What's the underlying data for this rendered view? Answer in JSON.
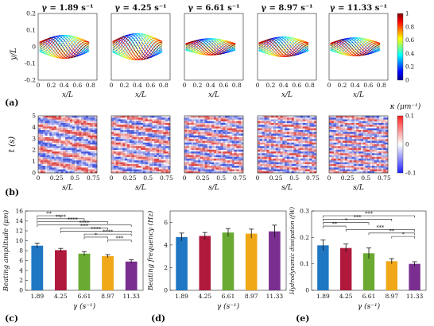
{
  "gammas": [
    "γ = 1.89 s⁻¹",
    "γ = 4.25 s⁻¹",
    "γ = 6.61 s⁻¹",
    "γ = 8.97 s⁻¹",
    "γ = 11.33 s⁻¹"
  ],
  "panel_a": {
    "letter": "(a)",
    "ylabel": "y/L",
    "xlabel": "x/L",
    "xticks": [
      "0",
      "0.2",
      "0.4",
      "0.6",
      "0.8"
    ],
    "yticks": [
      "0.2",
      "0.1",
      "0",
      "-0.1",
      "-0.2"
    ],
    "colorbar_ticks": [
      "1",
      "0.8",
      "0.6",
      "0.4",
      "0.2",
      "0"
    ]
  },
  "panel_b": {
    "letter": "(b)",
    "ylabel": "t (s)",
    "xlabel": "s/L",
    "xticks": [
      "0",
      "0.25",
      "0.5",
      "0.75"
    ],
    "yticks": [
      "5",
      "4",
      "3",
      "2",
      "1",
      "0"
    ],
    "colorbar_label": "κ (μm⁻¹)",
    "colorbar_ticks": [
      "0.1",
      "0",
      "-0.1"
    ]
  },
  "chart_data": [
    {
      "type": "bar",
      "panel": "(c)",
      "categories": [
        "1.89",
        "4.25",
        "6.61",
        "8.97",
        "11.33"
      ],
      "values": [
        9.0,
        8.1,
        7.4,
        6.9,
        5.8
      ],
      "errors": [
        0.5,
        0.35,
        0.4,
        0.3,
        0.35
      ],
      "ylim": [
        0,
        16
      ],
      "yticks": [
        "0",
        "2",
        "4",
        "6",
        "8",
        "10",
        "12",
        "14",
        "16"
      ],
      "ylabel": "Beating amplitude (μm)",
      "xlabel": "γ (s⁻¹)",
      "significance": [
        {
          "from": 0,
          "to": 1,
          "label": "**"
        },
        {
          "from": 0,
          "to": 2,
          "label": "****"
        },
        {
          "from": 0,
          "to": 3,
          "label": "****"
        },
        {
          "from": 0,
          "to": 4,
          "label": "****"
        },
        {
          "from": 1,
          "to": 3,
          "label": "***"
        },
        {
          "from": 1,
          "to": 4,
          "label": "****"
        },
        {
          "from": 2,
          "to": 4,
          "label": "****"
        },
        {
          "from": 2,
          "to": 3,
          "label": "*"
        },
        {
          "from": 3,
          "to": 4,
          "label": "***"
        }
      ]
    },
    {
      "type": "bar",
      "panel": "(d)",
      "categories": [
        "1.89",
        "4.25",
        "6.61",
        "8.97",
        "11.33"
      ],
      "values": [
        4.7,
        4.8,
        5.1,
        5.0,
        5.2
      ],
      "errors": [
        0.35,
        0.3,
        0.35,
        0.4,
        0.55
      ],
      "ylim": [
        0,
        7
      ],
      "yticks": [
        "0",
        "2",
        "4",
        "6"
      ],
      "ylabel": "Beating frequency (Hz)",
      "xlabel": "γ (s⁻¹)"
    },
    {
      "type": "bar",
      "panel": "(e)",
      "categories": [
        "1.89",
        "4.25",
        "6.61",
        "8.97",
        "11.33"
      ],
      "values": [
        0.17,
        0.16,
        0.14,
        0.11,
        0.1
      ],
      "errors": [
        0.02,
        0.015,
        0.02,
        0.01,
        0.008
      ],
      "ylim": [
        0,
        0.3
      ],
      "yticks": [
        "0",
        "0.1",
        "0.2",
        "0.3"
      ],
      "ylabel": "Hydrodynamic dissipation (fW)",
      "xlabel": "γ (s⁻¹)",
      "significance": [
        {
          "from": 0,
          "to": 4,
          "label": "***"
        },
        {
          "from": 0,
          "to": 3,
          "label": "***"
        },
        {
          "from": 0,
          "to": 2,
          "label": "*"
        },
        {
          "from": 0,
          "to": 1,
          "label": "**"
        },
        {
          "from": 1,
          "to": 4,
          "label": "***"
        },
        {
          "from": 2,
          "to": 4,
          "label": "**"
        },
        {
          "from": 3,
          "to": 4,
          "label": "*"
        }
      ]
    }
  ],
  "colors": [
    "#1f77c4",
    "#b0193c",
    "#6aaa32",
    "#f0a818",
    "#7a2f90"
  ]
}
